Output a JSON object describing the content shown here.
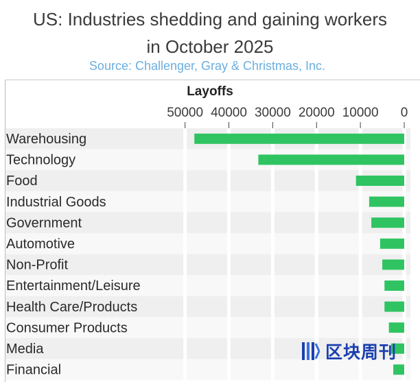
{
  "header": {
    "title_line1": "US: Industries shedding and gaining workers",
    "title_line2": "in October 2025",
    "subtitle": "Source: Challenger, Gray & Christmas, Inc."
  },
  "watermark": {
    "text": "区块周刊",
    "icon": "blockchain-weekly-logo-icon"
  },
  "colors": {
    "bar": "#2fc461",
    "row_even": "#efefef",
    "row_odd": "#f8f8f8",
    "grid": "#ffffff",
    "title": "#3a3a3a",
    "subtitle": "#6aaee0"
  },
  "chart_data": {
    "type": "bar",
    "orientation": "horizontal",
    "title": "US: Industries shedding and gaining workers in October 2025",
    "subtitle": "Source: Challenger, Gray & Christmas, Inc.",
    "xlabel": "Layoffs",
    "ylabel": "",
    "xlim": [
      55000,
      0
    ],
    "x_reversed": true,
    "ticks": [
      50000,
      40000,
      30000,
      20000,
      10000,
      0
    ],
    "tick_labels": [
      "50000",
      "40000",
      "30000",
      "20000",
      "10000",
      "0"
    ],
    "categories": [
      "Warehousing",
      "Technology",
      "Food",
      "Industrial Goods",
      "Government",
      "Automotive",
      "Non-Profit",
      "Entertainment/Leisure",
      "Health Care/Products",
      "Consumer Products",
      "Media",
      "Financial"
    ],
    "values": [
      47878,
      33281,
      11000,
      8000,
      7500,
      5500,
      5000,
      4500,
      4500,
      3500,
      3000,
      2500
    ],
    "legend": "none",
    "grid": true
  }
}
